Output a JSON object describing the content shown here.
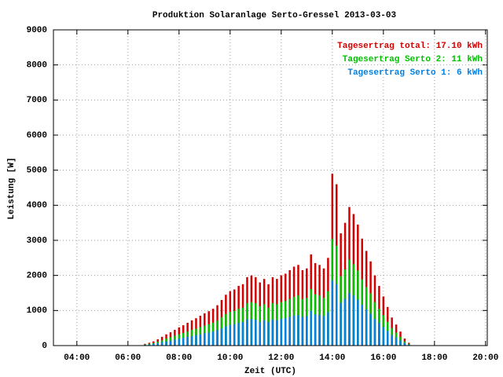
{
  "chart_data": {
    "type": "bar",
    "title": "Produktion Solaranlage Serto-Gressel 2013-03-03",
    "xlabel": "Zeit (UTC)",
    "ylabel": "Leistung [W]",
    "x": [
      400,
      410,
      420,
      430,
      440,
      450,
      460,
      470,
      480,
      490,
      500,
      510,
      520,
      530,
      540,
      550,
      560,
      570,
      580,
      590,
      600,
      610,
      620,
      630,
      640,
      650,
      660,
      670,
      680,
      690,
      700,
      710,
      720,
      730,
      740,
      750,
      760,
      770,
      780,
      790,
      800,
      810,
      820,
      830,
      840,
      850,
      860,
      870,
      880,
      890,
      900,
      910,
      920,
      930,
      940,
      950,
      960,
      970,
      980,
      990,
      1000,
      1010,
      1020
    ],
    "series": [
      {
        "name": "Tagesertrag total: 17.10 kWh",
        "color": "#d40000",
        "values": [
          50,
          80,
          120,
          180,
          250,
          320,
          380,
          450,
          520,
          580,
          650,
          720,
          780,
          850,
          920,
          980,
          1050,
          1150,
          1300,
          1450,
          1550,
          1600,
          1700,
          1750,
          1950,
          2000,
          1950,
          1800,
          1900,
          1750,
          1950,
          1900,
          2000,
          2050,
          2150,
          2250,
          2300,
          2150,
          2200,
          2600,
          2350,
          2300,
          2200,
          2500,
          4900,
          4600,
          3200,
          3500,
          3950,
          3750,
          3450,
          3050,
          2700,
          2400,
          2000,
          1700,
          1400,
          1100,
          800,
          600,
          400,
          200,
          80
        ]
      },
      {
        "name": "Tagesertrag Serto 2: 11 kWh",
        "color": "#00c000",
        "values": [
          30,
          50,
          70,
          110,
          150,
          200,
          240,
          280,
          320,
          360,
          400,
          450,
          480,
          530,
          570,
          610,
          650,
          710,
          810,
          900,
          960,
          990,
          1050,
          1080,
          1210,
          1240,
          1210,
          1120,
          1180,
          1080,
          1210,
          1180,
          1240,
          1270,
          1330,
          1390,
          1430,
          1330,
          1360,
          1610,
          1460,
          1430,
          1360,
          1550,
          3040,
          2850,
          1980,
          2170,
          2450,
          2320,
          2140,
          1890,
          1670,
          1490,
          1240,
          1050,
          870,
          680,
          500,
          370,
          250,
          120,
          50
        ]
      },
      {
        "name": "Tagesertrag Serto 1: 6 kWh",
        "color": "#0080e0",
        "values": [
          20,
          30,
          50,
          70,
          100,
          120,
          140,
          170,
          200,
          220,
          250,
          270,
          300,
          320,
          350,
          370,
          400,
          440,
          490,
          550,
          590,
          610,
          650,
          670,
          740,
          760,
          740,
          680,
          720,
          670,
          740,
          720,
          760,
          780,
          820,
          860,
          870,
          820,
          840,
          990,
          890,
          870,
          840,
          950,
          1860,
          1750,
          1220,
          1330,
          1500,
          1430,
          1310,
          1160,
          1030,
          910,
          760,
          650,
          530,
          420,
          300,
          230,
          150,
          80,
          30
        ]
      }
    ],
    "xlim": [
      185,
      1204
    ],
    "xticks": [
      {
        "value": 240,
        "label": "04:00"
      },
      {
        "value": 360,
        "label": "06:00"
      },
      {
        "value": 480,
        "label": "08:00"
      },
      {
        "value": 600,
        "label": "10:00"
      },
      {
        "value": 720,
        "label": "12:00"
      },
      {
        "value": 840,
        "label": "14:00"
      },
      {
        "value": 960,
        "label": "16:00"
      },
      {
        "value": 1080,
        "label": "18:00"
      },
      {
        "value": 1200,
        "label": "20:00"
      }
    ],
    "ylim": [
      0,
      9000
    ],
    "yticks": [
      0,
      1000,
      2000,
      3000,
      4000,
      5000,
      6000,
      7000,
      8000,
      9000
    ],
    "grid": true,
    "legend": "top-right"
  }
}
